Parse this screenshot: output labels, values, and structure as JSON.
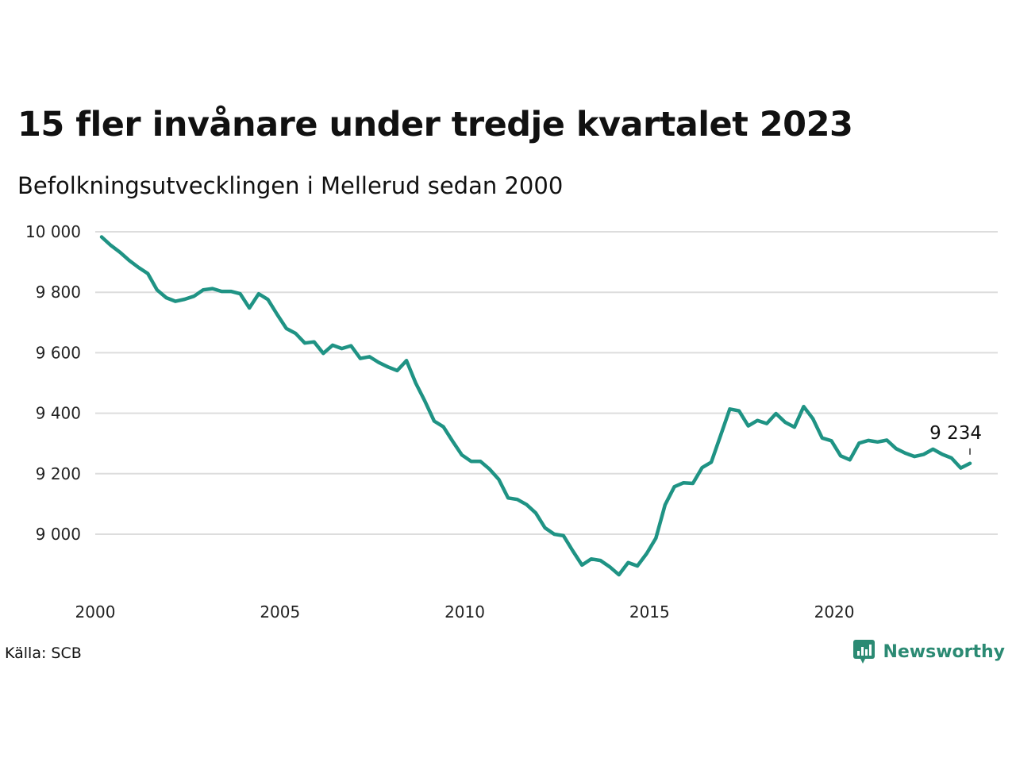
{
  "header": {
    "title": "15 fler invånare under tredje kvartalet 2023",
    "subtitle": "Befolkningsutvecklingen i Mellerud sedan 2000"
  },
  "footer": {
    "source": "Källa: SCB",
    "brand": "Newsworthy",
    "brand_icon": "newsworthy-logo-icon"
  },
  "colors": {
    "line": "#1f9384",
    "grid": "#dddddd",
    "brand": "#2b8a73"
  },
  "chart_data": {
    "type": "line",
    "title": "15 fler invånare under tredje kvartalet 2023",
    "subtitle": "Befolkningsutvecklingen i Mellerud sedan 2000",
    "xlabel": "",
    "ylabel": "",
    "x_ticks": [
      "2000",
      "2005",
      "2010",
      "2015",
      "2020"
    ],
    "x_tick_values": [
      2000,
      2005,
      2010,
      2015,
      2020
    ],
    "y_ticks": [
      "10 000",
      "9 800",
      "9 600",
      "9 400",
      "9 200",
      "9 000"
    ],
    "y_tick_values": [
      10000,
      9800,
      9600,
      9400,
      9200,
      9000
    ],
    "xlim": [
      2000,
      2024
    ],
    "ylim": [
      8840,
      10000
    ],
    "grid": true,
    "legend": "none",
    "annotation": {
      "label": "9 234",
      "x": 2023.5,
      "y": 9234
    },
    "series": [
      {
        "x": [
          2000.0,
          2000.25,
          2000.5,
          2000.75,
          2001.0,
          2001.25,
          2001.5,
          2001.75,
          2002.0,
          2002.25,
          2002.5,
          2002.75,
          2003.0,
          2003.25,
          2003.5,
          2003.75,
          2004.0,
          2004.25,
          2004.5,
          2004.75,
          2005.0,
          2005.25,
          2005.5,
          2005.75,
          2006.0,
          2006.25,
          2006.5,
          2006.75,
          2007.0,
          2007.25,
          2007.5,
          2007.75,
          2008.0,
          2008.25,
          2008.5,
          2008.75,
          2009.0,
          2009.25,
          2009.5,
          2009.75,
          2010.0,
          2010.25,
          2010.5,
          2010.75,
          2011.0,
          2011.25,
          2011.5,
          2011.75,
          2012.0,
          2012.25,
          2012.5,
          2012.75,
          2013.0,
          2013.25,
          2013.5,
          2013.75,
          2014.0,
          2014.25,
          2014.5,
          2014.75,
          2015.0,
          2015.25,
          2015.5,
          2015.75,
          2016.0,
          2016.25,
          2016.5,
          2016.75,
          2017.0,
          2017.25,
          2017.5,
          2017.75,
          2018.0,
          2018.25,
          2018.5,
          2018.75,
          2019.0,
          2019.25,
          2019.5,
          2019.75,
          2020.0,
          2020.25,
          2020.5,
          2020.75,
          2021.0,
          2021.25,
          2021.5,
          2021.75,
          2022.0,
          2022.25,
          2022.5,
          2022.75,
          2023.0,
          2023.25,
          2023.5
        ],
        "values": [
          9983,
          9955,
          9932,
          9905,
          9882,
          9862,
          9808,
          9782,
          9770,
          9777,
          9787,
          9808,
          9812,
          9803,
          9803,
          9795,
          9748,
          9795,
          9776,
          9727,
          9680,
          9664,
          9632,
          9636,
          9598,
          9625,
          9614,
          9623,
          9581,
          9587,
          9568,
          9553,
          9541,
          9574,
          9500,
          9440,
          9374,
          9355,
          9307,
          9262,
          9241,
          9241,
          9215,
          9181,
          9120,
          9115,
          9098,
          9070,
          9021,
          9000,
          8995,
          8945,
          8898,
          8918,
          8913,
          8892,
          8866,
          8906,
          8895,
          8936,
          8987,
          9097,
          9157,
          9170,
          9168,
          9220,
          9238,
          9326,
          9414,
          9408,
          9358,
          9376,
          9366,
          9399,
          9370,
          9354,
          9422,
          9382,
          9318,
          9309,
          9259,
          9246,
          9301,
          9310,
          9305,
          9311,
          9283,
          9268,
          9257,
          9264,
          9281,
          9264,
          9252,
          9219,
          9234
        ]
      }
    ]
  }
}
